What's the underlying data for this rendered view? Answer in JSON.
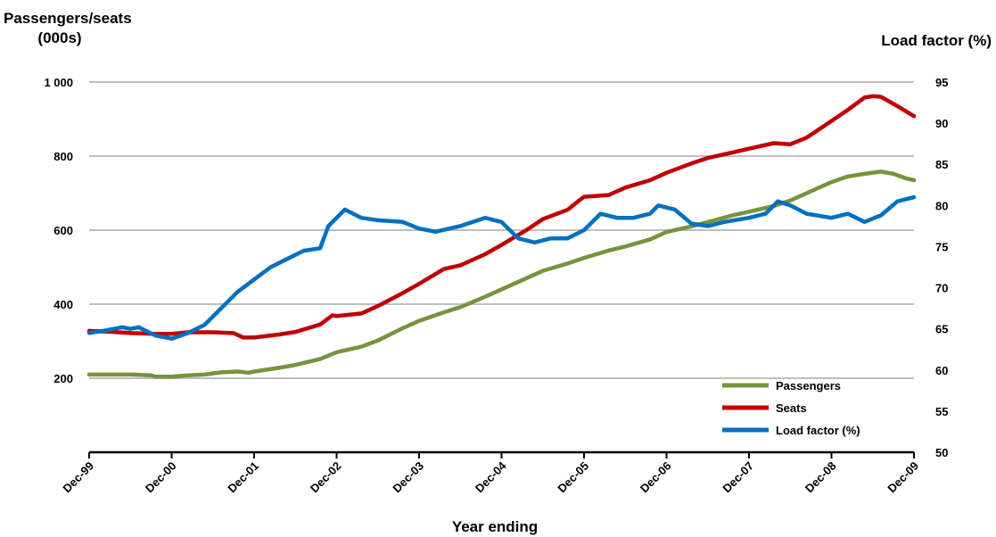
{
  "chart_data": {
    "type": "line",
    "title": "",
    "ylabel_left_line1": "Passengers/seats",
    "ylabel_left_line2": "(000s)",
    "ylabel_right": "Load  factor (%)",
    "xlabel": "Year ending",
    "ylim_left": [
      0,
      1000
    ],
    "ylim_right": [
      50,
      95
    ],
    "yticks_left": [
      200,
      400,
      600,
      800,
      1000
    ],
    "yticks_left_labels": [
      "200",
      "400",
      "600",
      "800",
      "1 000"
    ],
    "yticks_right": [
      50,
      55,
      60,
      65,
      70,
      75,
      80,
      85,
      90,
      95
    ],
    "yticks_right_labels": [
      "50",
      "55",
      "60",
      "65",
      "70",
      "75",
      "80",
      "85",
      "90",
      "95"
    ],
    "categories": [
      "Dec-99",
      "Dec-00",
      "Dec-01",
      "Dec-02",
      "Dec-03",
      "Dec-04",
      "Dec-05",
      "Dec-06",
      "Dec-07",
      "Dec-08",
      "Dec-09"
    ],
    "grid": true,
    "legend_position": "bottom-right",
    "series": [
      {
        "name": "Passengers",
        "axis": "left",
        "color": "#77933C",
        "values": [
          [
            0,
            210
          ],
          [
            0.3,
            210
          ],
          [
            0.5,
            210
          ],
          [
            0.75,
            208
          ],
          [
            0.8,
            204
          ],
          [
            1.0,
            204
          ],
          [
            1.2,
            208
          ],
          [
            1.4,
            210
          ],
          [
            1.6,
            216
          ],
          [
            1.8,
            218
          ],
          [
            1.93,
            215
          ],
          [
            2.0,
            218
          ],
          [
            2.3,
            228
          ],
          [
            2.5,
            236
          ],
          [
            2.8,
            252
          ],
          [
            3.0,
            270
          ],
          [
            3.3,
            285
          ],
          [
            3.5,
            302
          ],
          [
            3.8,
            335
          ],
          [
            4.0,
            355
          ],
          [
            4.3,
            378
          ],
          [
            4.5,
            392
          ],
          [
            4.8,
            420
          ],
          [
            5.0,
            440
          ],
          [
            5.3,
            470
          ],
          [
            5.5,
            490
          ],
          [
            5.8,
            510
          ],
          [
            6.0,
            525
          ],
          [
            6.3,
            545
          ],
          [
            6.5,
            556
          ],
          [
            6.8,
            575
          ],
          [
            7.0,
            595
          ],
          [
            7.3,
            610
          ],
          [
            7.5,
            622
          ],
          [
            7.8,
            640
          ],
          [
            8.0,
            650
          ],
          [
            8.3,
            665
          ],
          [
            8.5,
            680
          ],
          [
            8.75,
            705
          ],
          [
            9.0,
            730
          ],
          [
            9.2,
            745
          ],
          [
            9.4,
            752
          ],
          [
            9.6,
            758
          ],
          [
            9.75,
            752
          ],
          [
            9.9,
            740
          ],
          [
            10.0,
            735
          ]
        ]
      },
      {
        "name": "Seats",
        "axis": "left",
        "color": "#C00000",
        "values": [
          [
            0,
            328
          ],
          [
            0.3,
            325
          ],
          [
            0.5,
            322
          ],
          [
            0.8,
            320
          ],
          [
            1.0,
            320
          ],
          [
            1.2,
            324
          ],
          [
            1.5,
            324
          ],
          [
            1.75,
            322
          ],
          [
            1.87,
            310
          ],
          [
            2.0,
            310
          ],
          [
            2.3,
            318
          ],
          [
            2.5,
            325
          ],
          [
            2.8,
            345
          ],
          [
            2.95,
            370
          ],
          [
            3.0,
            368
          ],
          [
            3.3,
            375
          ],
          [
            3.5,
            395
          ],
          [
            3.8,
            430
          ],
          [
            4.0,
            455
          ],
          [
            4.3,
            495
          ],
          [
            4.5,
            505
          ],
          [
            4.8,
            535
          ],
          [
            5.0,
            560
          ],
          [
            5.3,
            600
          ],
          [
            5.5,
            630
          ],
          [
            5.8,
            655
          ],
          [
            5.95,
            682
          ],
          [
            6.0,
            690
          ],
          [
            6.3,
            695
          ],
          [
            6.5,
            715
          ],
          [
            6.8,
            735
          ],
          [
            7.0,
            755
          ],
          [
            7.3,
            780
          ],
          [
            7.5,
            795
          ],
          [
            7.8,
            810
          ],
          [
            8.0,
            820
          ],
          [
            8.3,
            835
          ],
          [
            8.5,
            832
          ],
          [
            8.7,
            850
          ],
          [
            9.0,
            895
          ],
          [
            9.2,
            925
          ],
          [
            9.4,
            958
          ],
          [
            9.5,
            962
          ],
          [
            9.6,
            960
          ],
          [
            9.8,
            935
          ],
          [
            10.0,
            908
          ]
        ]
      },
      {
        "name": "Load factor (%)",
        "axis": "right",
        "color": "#0070C0",
        "values": [
          [
            0,
            64.5
          ],
          [
            0.2,
            64.8
          ],
          [
            0.4,
            65.2
          ],
          [
            0.5,
            65.0
          ],
          [
            0.6,
            65.2
          ],
          [
            0.8,
            64.2
          ],
          [
            1.0,
            63.8
          ],
          [
            1.2,
            64.5
          ],
          [
            1.4,
            65.5
          ],
          [
            1.6,
            67.5
          ],
          [
            1.8,
            69.5
          ],
          [
            2.0,
            71.0
          ],
          [
            2.2,
            72.5
          ],
          [
            2.4,
            73.5
          ],
          [
            2.6,
            74.5
          ],
          [
            2.8,
            74.8
          ],
          [
            2.9,
            77.5
          ],
          [
            3.1,
            79.5
          ],
          [
            3.3,
            78.5
          ],
          [
            3.5,
            78.2
          ],
          [
            3.8,
            78.0
          ],
          [
            4.0,
            77.2
          ],
          [
            4.2,
            76.8
          ],
          [
            4.5,
            77.5
          ],
          [
            4.8,
            78.5
          ],
          [
            5.0,
            78.0
          ],
          [
            5.2,
            76.0
          ],
          [
            5.4,
            75.5
          ],
          [
            5.6,
            76.0
          ],
          [
            5.8,
            76.0
          ],
          [
            6.0,
            77.0
          ],
          [
            6.2,
            79.0
          ],
          [
            6.4,
            78.5
          ],
          [
            6.6,
            78.5
          ],
          [
            6.8,
            79.0
          ],
          [
            6.9,
            80.0
          ],
          [
            7.1,
            79.5
          ],
          [
            7.3,
            77.8
          ],
          [
            7.5,
            77.5
          ],
          [
            7.7,
            78.0
          ],
          [
            8.0,
            78.5
          ],
          [
            8.2,
            79.0
          ],
          [
            8.35,
            80.5
          ],
          [
            8.5,
            80.0
          ],
          [
            8.7,
            79.0
          ],
          [
            9.0,
            78.5
          ],
          [
            9.2,
            79.0
          ],
          [
            9.4,
            78.0
          ],
          [
            9.6,
            78.8
          ],
          [
            9.8,
            80.5
          ],
          [
            10.0,
            81.0
          ]
        ]
      }
    ]
  }
}
